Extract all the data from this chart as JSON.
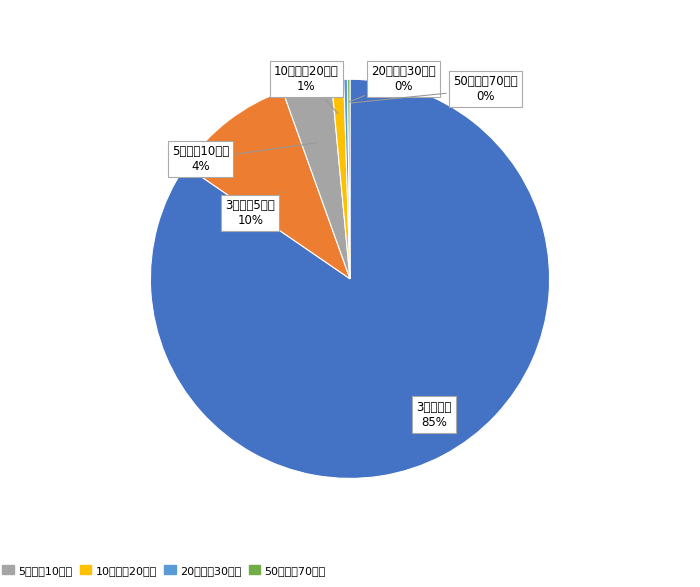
{
  "labels": [
    "3万円以下",
    "3万円～5万円",
    "5万円～10万円",
    "10万円～20万円",
    "20万円～30万円",
    "50万円～70万円"
  ],
  "values": [
    85,
    10,
    4,
    1,
    0.3,
    0.2
  ],
  "display_pcts": [
    "85%",
    "10%",
    "4%",
    "1%",
    "0%",
    "0%"
  ],
  "colors": [
    "#4472C4",
    "#ED7D31",
    "#A5A5A5",
    "#FFC000",
    "#5B9BD5",
    "#70AD47"
  ],
  "legend_colors": [
    "#4472C4",
    "#ED7D31",
    "#A5A5A5",
    "#FFC000",
    "#5B9BD5",
    "#70AD47"
  ],
  "background_color": "#FFFFFF",
  "callout_texts": [
    "3万円以下\n85%",
    "3万円～5万円\n10%",
    "5万円～10万円\n4%",
    "10万円～20万円\n1%",
    "20万円～30万円\n0%",
    "50万円～70万円\n0%"
  ]
}
